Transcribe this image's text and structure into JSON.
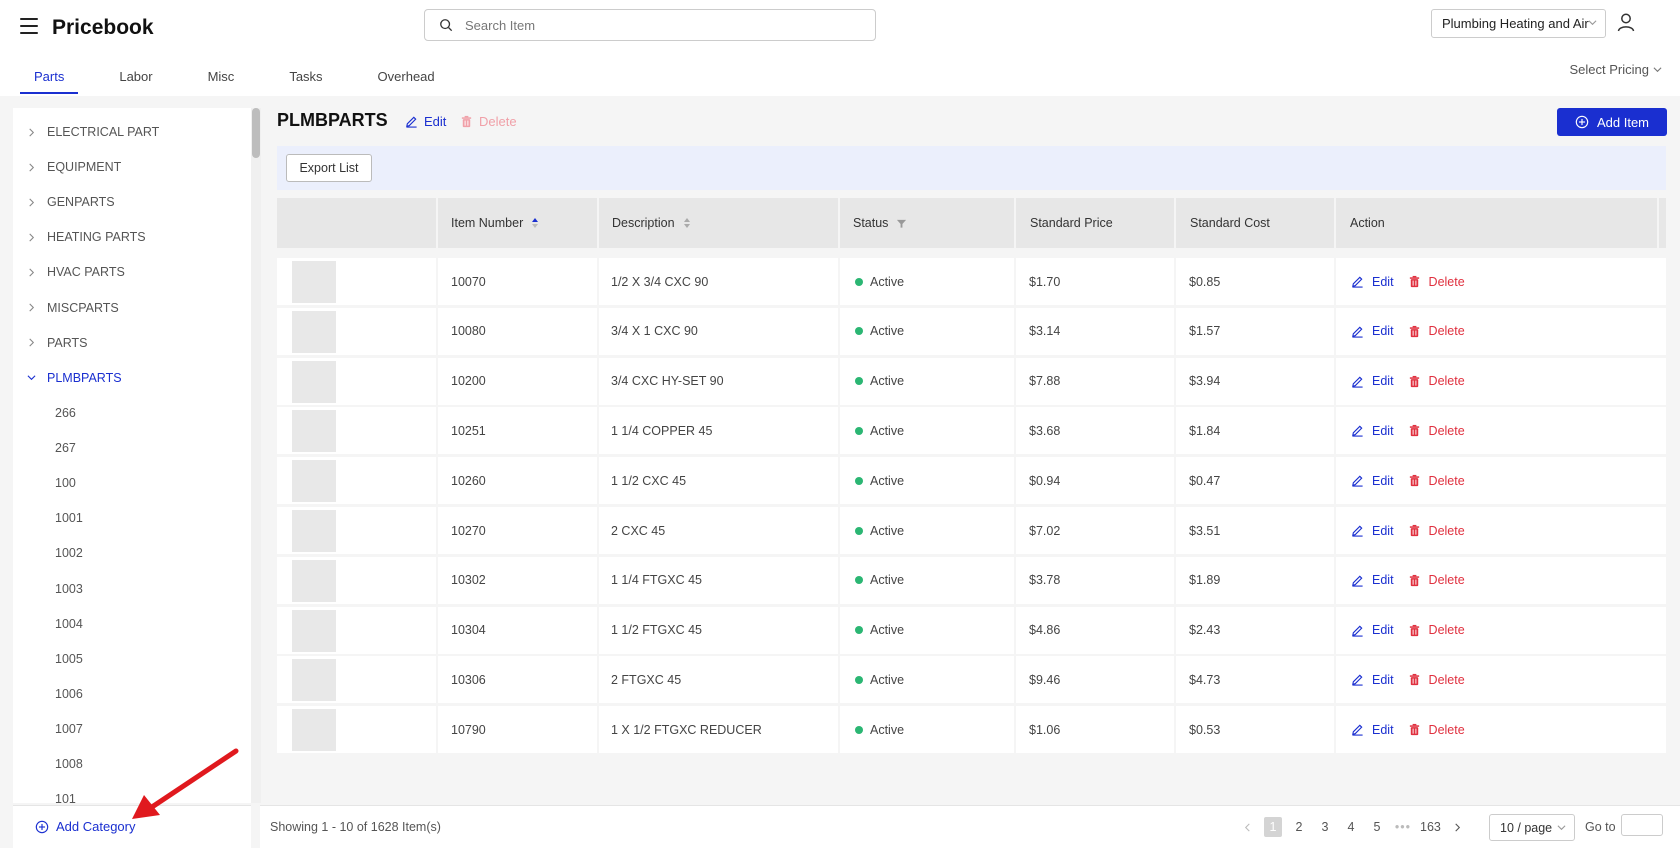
{
  "header": {
    "app_title": "Pricebook",
    "search_placeholder": "Search Item",
    "company": "Plumbing Heating and Air",
    "select_pricing": "Select Pricing",
    "tabs": [
      {
        "label": "Parts",
        "active": true
      },
      {
        "label": "Labor",
        "active": false
      },
      {
        "label": "Misc",
        "active": false
      },
      {
        "label": "Tasks",
        "active": false
      },
      {
        "label": "Overhead",
        "active": false
      }
    ]
  },
  "sidebar": {
    "categories": [
      {
        "label": "ELECTRICAL PART",
        "expanded": false
      },
      {
        "label": "EQUIPMENT",
        "expanded": false
      },
      {
        "label": "GENPARTS",
        "expanded": false
      },
      {
        "label": "HEATING PARTS",
        "expanded": false
      },
      {
        "label": "HVAC PARTS",
        "expanded": false
      },
      {
        "label": "MISCPARTS",
        "expanded": false
      },
      {
        "label": "PARTS",
        "expanded": false
      },
      {
        "label": "PLMBPARTS",
        "expanded": true
      }
    ],
    "subcategories": [
      "266",
      "267",
      "100",
      "1001",
      "1002",
      "1003",
      "1004",
      "1005",
      "1006",
      "1007",
      "1008",
      "101"
    ],
    "add_category_label": "Add Category"
  },
  "main": {
    "title": "PLMBPARTS",
    "edit_label": "Edit",
    "delete_label": "Delete",
    "add_item_label": "Add Item",
    "export_label": "Export List",
    "columns": [
      "Item Number",
      "Description",
      "Status",
      "Standard Price",
      "Standard Cost",
      "Action"
    ],
    "rows": [
      {
        "item": "10070",
        "desc": "1/2 X 3/4 CXC 90",
        "status": "Active",
        "price": "$1.70",
        "cost": "$0.85"
      },
      {
        "item": "10080",
        "desc": "3/4 X 1 CXC 90",
        "status": "Active",
        "price": "$3.14",
        "cost": "$1.57"
      },
      {
        "item": "10200",
        "desc": "3/4 CXC HY-SET 90",
        "status": "Active",
        "price": "$7.88",
        "cost": "$3.94"
      },
      {
        "item": "10251",
        "desc": "1 1/4 COPPER 45",
        "status": "Active",
        "price": "$3.68",
        "cost": "$1.84"
      },
      {
        "item": "10260",
        "desc": "1 1/2 CXC 45",
        "status": "Active",
        "price": "$0.94",
        "cost": "$0.47"
      },
      {
        "item": "10270",
        "desc": "2 CXC 45",
        "status": "Active",
        "price": "$7.02",
        "cost": "$3.51"
      },
      {
        "item": "10302",
        "desc": "1 1/4 FTGXC 45",
        "status": "Active",
        "price": "$3.78",
        "cost": "$1.89"
      },
      {
        "item": "10304",
        "desc": "1 1/2 FTGXC 45",
        "status": "Active",
        "price": "$4.86",
        "cost": "$2.43"
      },
      {
        "item": "10306",
        "desc": "2 FTGXC 45",
        "status": "Active",
        "price": "$9.46",
        "cost": "$4.73"
      },
      {
        "item": "10790",
        "desc": "1 X 1/2 FTGXC REDUCER",
        "status": "Active",
        "price": "$1.06",
        "cost": "$0.53"
      }
    ],
    "row_edit_label": "Edit",
    "row_delete_label": "Delete"
  },
  "footer": {
    "showing": "Showing 1 - 10 of 1628 Item(s)",
    "pages": [
      "1",
      "2",
      "3",
      "4",
      "5"
    ],
    "ellipsis": "•••",
    "last_page": "163",
    "current_page": "1",
    "page_size": "10 / page",
    "goto_label": "Go to"
  },
  "colors": {
    "accent": "#1a2fd0",
    "danger": "#e0303f",
    "active_status": "#2bb673"
  }
}
